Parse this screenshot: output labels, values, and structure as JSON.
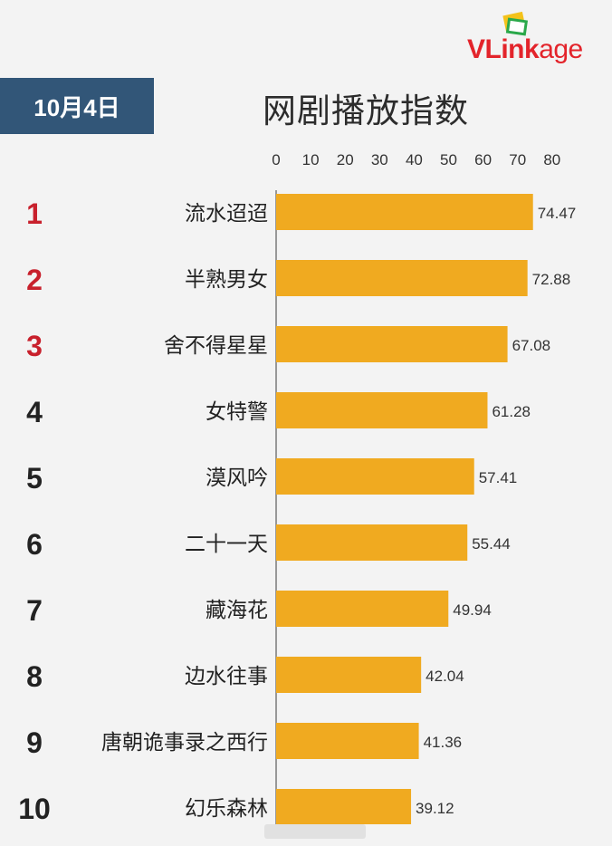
{
  "date_label": "10月4日",
  "brand": {
    "name_bold": "VLink",
    "name_light": "age",
    "color": "#e3242b"
  },
  "colors": {
    "bar": "#f0aa20",
    "rank_top": "#c8202c",
    "rank_other": "#222222",
    "badge": "#325678"
  },
  "chart_data": {
    "type": "bar",
    "orientation": "horizontal",
    "title": "网剧播放指数",
    "xlim": [
      0,
      80
    ],
    "xticks": [
      0,
      10,
      20,
      30,
      40,
      50,
      60,
      70,
      80
    ],
    "grid": false,
    "ranks": [
      "1",
      "2",
      "3",
      "4",
      "5",
      "6",
      "7",
      "8",
      "9",
      "10"
    ],
    "categories": [
      "流水迢迢",
      "半熟男女",
      "舍不得星星",
      "女特警",
      "漠风吟",
      "二十一天",
      "藏海花",
      "边水往事",
      "唐朝诡事录之西行",
      "幻乐森林"
    ],
    "values": [
      74.47,
      72.88,
      67.08,
      61.28,
      57.41,
      55.44,
      49.94,
      42.04,
      41.36,
      39.12
    ],
    "value_labels": [
      "74.47",
      "72.88",
      "67.08",
      "61.28",
      "57.41",
      "55.44",
      "49.94",
      "42.04",
      "41.36",
      "39.12"
    ]
  }
}
